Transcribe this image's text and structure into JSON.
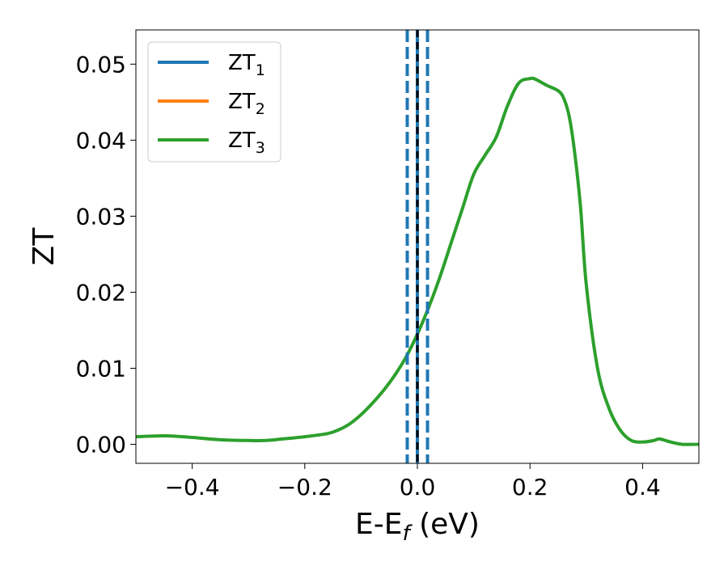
{
  "chart_data": {
    "type": "line",
    "xlabel": {
      "main": "E-E",
      "sub": "f",
      "unit": " (eV)"
    },
    "ylabel": "ZT",
    "xlim": [
      -0.5,
      0.5
    ],
    "ylim": [
      -0.0025,
      0.0545
    ],
    "xticks": [
      -0.4,
      -0.2,
      0.0,
      0.2,
      0.4
    ],
    "xtick_labels": [
      "−0.4",
      "−0.2",
      "0.0",
      "0.2",
      "0.4"
    ],
    "yticks": [
      0.0,
      0.01,
      0.02,
      0.03,
      0.04,
      0.05
    ],
    "ytick_labels": [
      "0.00",
      "0.01",
      "0.02",
      "0.03",
      "0.04",
      "0.05"
    ],
    "legend_position": "top-left",
    "grid": false,
    "series": [
      {
        "base": "ZT",
        "sub": "1",
        "color": "#1f77b4"
      },
      {
        "base": "ZT",
        "sub": "2",
        "color": "#ff7f0e"
      },
      {
        "base": "ZT",
        "sub": "3",
        "color": "#2ca02c"
      }
    ],
    "visible_curve_color": "#2ca02c",
    "curve_x": [
      -0.5,
      -0.46,
      -0.44,
      -0.4,
      -0.35,
      -0.3,
      -0.27,
      -0.24,
      -0.2,
      -0.16,
      -0.14,
      -0.12,
      -0.1,
      -0.08,
      -0.06,
      -0.04,
      -0.02,
      0.0,
      0.02,
      0.04,
      0.06,
      0.08,
      0.1,
      0.12,
      0.14,
      0.16,
      0.18,
      0.2,
      0.21,
      0.23,
      0.25,
      0.26,
      0.27,
      0.28,
      0.29,
      0.3,
      0.32,
      0.34,
      0.36,
      0.38,
      0.4,
      0.42,
      0.43,
      0.45,
      0.47,
      0.5
    ],
    "curve_y": [
      0.001,
      0.0011,
      0.0011,
      0.0009,
      0.0006,
      0.0005,
      0.0005,
      0.0007,
      0.001,
      0.0014,
      0.0019,
      0.0027,
      0.0039,
      0.0054,
      0.0071,
      0.0091,
      0.0115,
      0.0145,
      0.018,
      0.022,
      0.0265,
      0.031,
      0.0355,
      0.038,
      0.0404,
      0.0445,
      0.0475,
      0.0481,
      0.048,
      0.0472,
      0.0465,
      0.0455,
      0.043,
      0.038,
      0.031,
      0.021,
      0.01,
      0.0048,
      0.0019,
      0.0005,
      0.0003,
      0.0005,
      0.0007,
      0.0003,
      0.0,
      0.0
    ],
    "vlines": [
      {
        "x": -0.018,
        "style": "dashed",
        "color": "#1f77b4"
      },
      {
        "x": 0.0,
        "style": "solid",
        "color": "#1f77b4"
      },
      {
        "x": 0.018,
        "style": "dashed",
        "color": "#1f77b4"
      },
      {
        "x": 0.0,
        "style": "dashed",
        "color": "#000000"
      }
    ]
  }
}
